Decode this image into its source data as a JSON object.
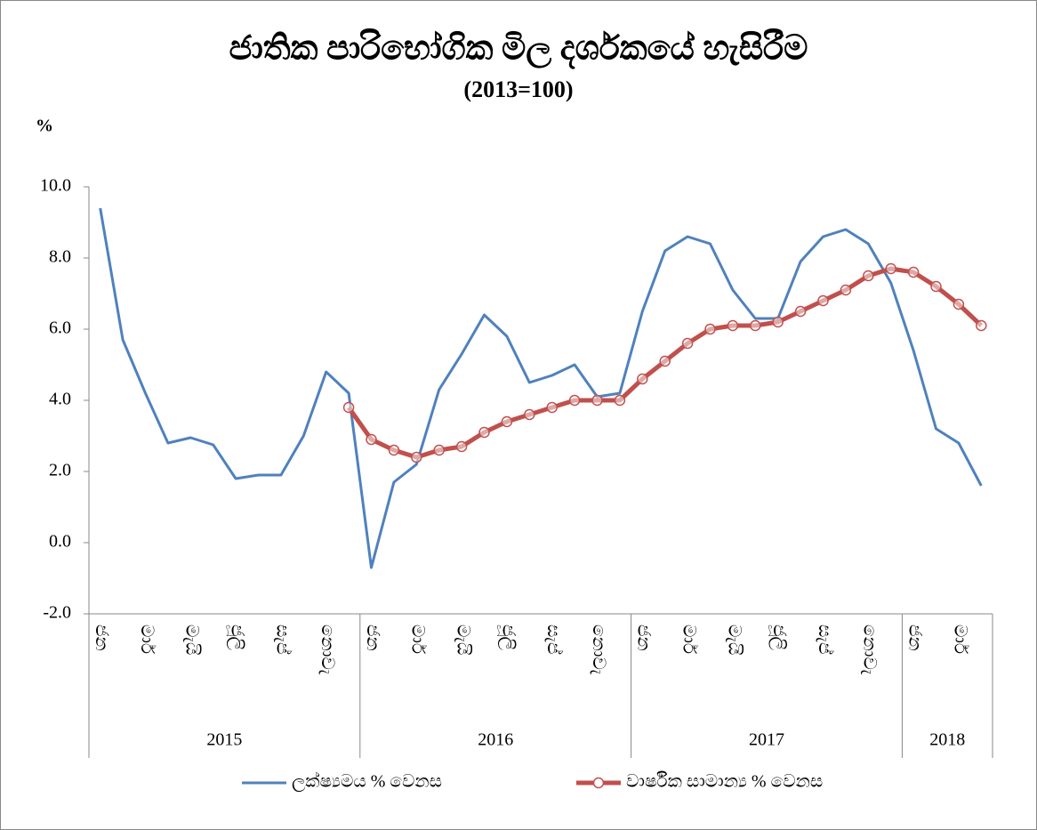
{
  "chart_data": {
    "type": "line",
    "title": "ජාතික පාරිභෝගික මිල දර්ශකයේ හැසිරීම",
    "subtitle": "(2013=100)",
    "y_label": "%",
    "categories": [
      "ජන",
      null,
      "මාර්",
      null,
      "මැයි",
      null,
      "ජූලි",
      null,
      "සැප්",
      null,
      "නොවැ",
      null,
      "ජන",
      null,
      "මාර්",
      null,
      "මැයි",
      null,
      "ජූලි",
      null,
      "සැප්",
      null,
      "නොවැ",
      null,
      "ජන",
      null,
      "මාර්",
      null,
      "මැයි",
      null,
      "ජූලි",
      null,
      "සැප්",
      null,
      "නොවැ",
      null,
      "ජන",
      null,
      "මාර්",
      null
    ],
    "x_groups": [
      "2015",
      "2016",
      "2017",
      "2018"
    ],
    "series": [
      {
        "name": "ලක්ෂ්‍යමය % වෙනස",
        "color": "#4f81bd",
        "marker": false,
        "values": [
          9.4,
          5.7,
          4.2,
          2.8,
          2.95,
          2.75,
          1.8,
          1.9,
          1.9,
          3.0,
          4.8,
          4.2,
          -0.7,
          1.7,
          2.2,
          4.3,
          5.3,
          6.4,
          5.8,
          4.5,
          4.7,
          5.0,
          4.1,
          4.2,
          6.5,
          8.2,
          8.6,
          8.4,
          7.1,
          6.3,
          6.3,
          7.9,
          8.6,
          8.8,
          8.4,
          7.3,
          5.4,
          3.2,
          2.8,
          1.6
        ]
      },
      {
        "name": "වාර්ෂික සාමාන්‍ය % වෙනස",
        "color": "#c0504d",
        "marker": true,
        "values": [
          null,
          null,
          null,
          null,
          null,
          null,
          null,
          null,
          null,
          null,
          null,
          3.8,
          2.9,
          2.6,
          2.4,
          2.6,
          2.7,
          3.1,
          3.4,
          3.6,
          3.8,
          4.0,
          4.0,
          4.0,
          4.6,
          5.1,
          5.6,
          6.0,
          6.1,
          6.1,
          6.2,
          6.5,
          6.8,
          7.1,
          7.5,
          7.7,
          7.6,
          7.2,
          6.7,
          6.1
        ]
      }
    ],
    "ylim": [
      -2,
      10
    ],
    "yticks": [
      {
        "value": -2,
        "label": "-2.0"
      },
      {
        "value": 0,
        "label": "0.0"
      },
      {
        "value": 2,
        "label": "2.0"
      },
      {
        "value": 4,
        "label": "4.0"
      },
      {
        "value": 6,
        "label": "6.0"
      },
      {
        "value": 8,
        "label": "8.0"
      },
      {
        "value": 10,
        "label": "10.0"
      }
    ],
    "grid": false,
    "legend": "bottom"
  }
}
